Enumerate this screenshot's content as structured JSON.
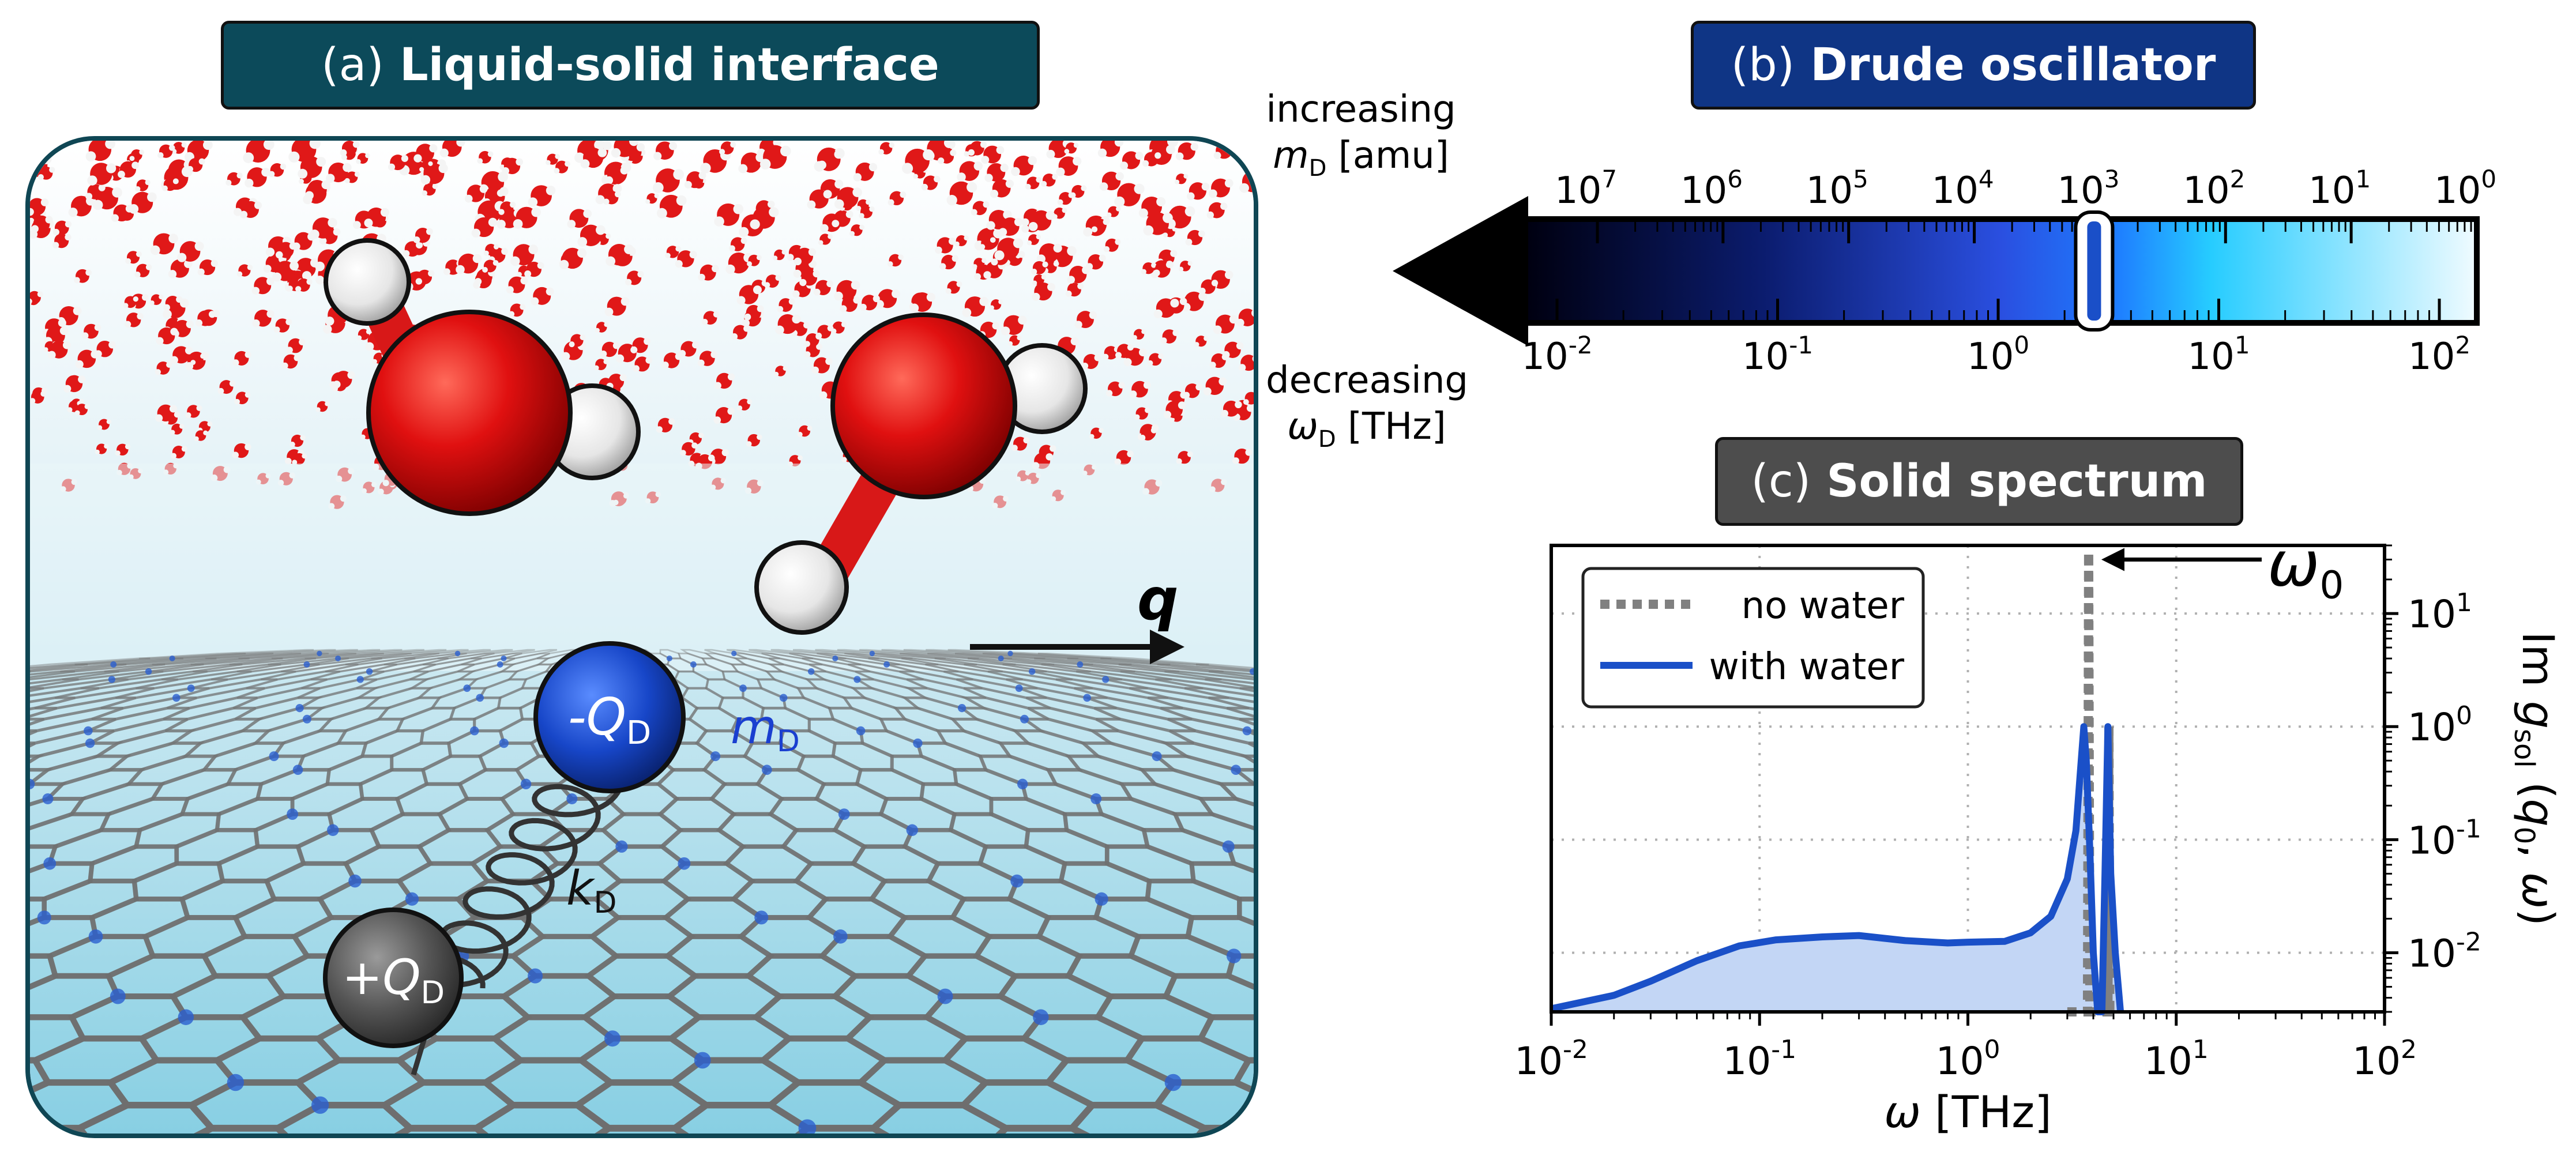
{
  "panel_a": {
    "title_letter": "(a)",
    "title_text": "Liquid-solid interface",
    "labels": {
      "q": "q",
      "neg_charge": "-Q",
      "neg_charge_sub": "D",
      "pos_charge": "+Q",
      "pos_charge_sub": "D",
      "mass": "m",
      "mass_sub": "D",
      "spring": "k",
      "spring_sub": "D"
    },
    "colors": {
      "border": "#0f4654",
      "oxygen": "#e01010",
      "hydrogen": "#f2f2f2",
      "neg_charge": "#1746c8",
      "pos_charge": "#555555",
      "mass_label": "#1a3fd0"
    }
  },
  "panel_b": {
    "title_letter": "(b)",
    "title_text": "Drude oscillator",
    "top_label_line1": "increasing",
    "top_label_var": "m",
    "top_label_sub": "D",
    "top_label_unit": "[amu]",
    "bottom_label_line1": "decreasing",
    "bottom_label_var": "ω",
    "bottom_label_sub": "D",
    "bottom_label_unit": "[THz]",
    "mass_ticks": [
      {
        "base": "10",
        "exp": "7"
      },
      {
        "base": "10",
        "exp": "6"
      },
      {
        "base": "10",
        "exp": "5"
      },
      {
        "base": "10",
        "exp": "4"
      },
      {
        "base": "10",
        "exp": "3"
      },
      {
        "base": "10",
        "exp": "2"
      },
      {
        "base": "10",
        "exp": "1"
      },
      {
        "base": "10",
        "exp": "0"
      }
    ],
    "freq_ticks": [
      {
        "base": "10",
        "exp": "-2"
      },
      {
        "base": "10",
        "exp": "-1"
      },
      {
        "base": "10",
        "exp": "0"
      },
      {
        "base": "10",
        "exp": "1"
      },
      {
        "base": "10",
        "exp": "2"
      }
    ],
    "highlight_mass_exponent": 3,
    "colors": {
      "dark": "#000010",
      "mid": "#2a4fe0",
      "light": "#26ccff",
      "pale": "#f0fbff",
      "marker": "#1a4fc8"
    }
  },
  "chart_data": {
    "type": "line",
    "title_letter": "(c)",
    "title": "Solid spectrum",
    "xlabel": "ω [THz]",
    "ylabel": "Im g_sol (q₀, ω)",
    "xscale": "log",
    "yscale": "log",
    "xlim": [
      0.01,
      100
    ],
    "ylim": [
      0.003,
      40
    ],
    "grid": true,
    "legend_position": "top-left",
    "x_ticks": [
      {
        "base": "10",
        "exp": "-2",
        "value": 0.01
      },
      {
        "base": "10",
        "exp": "-1",
        "value": 0.1
      },
      {
        "base": "10",
        "exp": "0",
        "value": 1
      },
      {
        "base": "10",
        "exp": "1",
        "value": 10
      },
      {
        "base": "10",
        "exp": "2",
        "value": 100
      }
    ],
    "y_ticks": [
      {
        "base": "10",
        "exp": "-2",
        "value": 0.01
      },
      {
        "base": "10",
        "exp": "-1",
        "value": 0.1
      },
      {
        "base": "10",
        "exp": "0",
        "value": 1
      },
      {
        "base": "10",
        "exp": "1",
        "value": 10
      }
    ],
    "annotation": {
      "text": "ω",
      "sub": "0",
      "x": 3.8,
      "y": 30
    },
    "series": [
      {
        "name": "no water",
        "style": "dotted",
        "color": "#808080",
        "x": [
          3.0,
          3.75,
          3.8,
          3.85,
          4.5,
          4.7,
          4.75,
          4.8,
          5.0
        ],
        "y": [
          0.003,
          0.003,
          35,
          0.003,
          0.003,
          0.003,
          1.0,
          0.003,
          0.003
        ]
      },
      {
        "name": "with water",
        "style": "solid",
        "color": "#1a50c8",
        "x": [
          0.01,
          0.02,
          0.03,
          0.05,
          0.08,
          0.12,
          0.2,
          0.3,
          0.5,
          0.8,
          1.0,
          1.5,
          2.0,
          2.5,
          3.0,
          3.3,
          3.5,
          3.6,
          3.7,
          3.85,
          4.0,
          4.2,
          4.4,
          4.55,
          4.7,
          4.85,
          5.1,
          5.4
        ],
        "y": [
          0.0032,
          0.0042,
          0.0056,
          0.0085,
          0.0115,
          0.013,
          0.0138,
          0.0142,
          0.0128,
          0.0122,
          0.0124,
          0.0126,
          0.015,
          0.021,
          0.045,
          0.12,
          0.5,
          1.0,
          0.5,
          0.08,
          0.01,
          0.003,
          0.003,
          0.05,
          1.0,
          0.05,
          0.01,
          0.003
        ]
      }
    ]
  }
}
